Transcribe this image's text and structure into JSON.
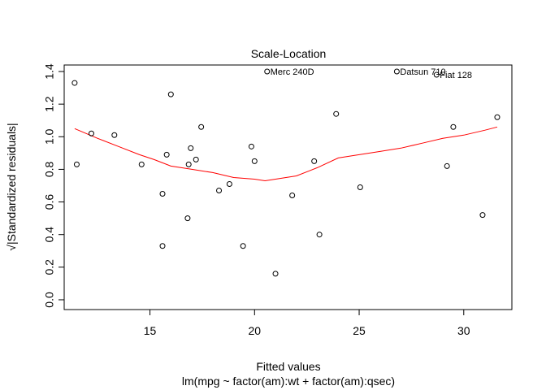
{
  "chart_data": {
    "type": "scatter",
    "title": "Scale-Location",
    "xlabel": "Fitted values",
    "subtitle": "lm(mpg ~ factor(am):wt + factor(am):qsec)",
    "ylabel": "√|Standardized residuals|",
    "xlim": [
      10.9,
      32.3
    ],
    "ylim": [
      -0.06,
      1.44
    ],
    "x_ticks": [
      15,
      20,
      25,
      30
    ],
    "y_ticks": [
      0.0,
      0.2,
      0.4,
      0.6,
      0.8,
      1.0,
      1.2,
      1.4
    ],
    "x_tick_labels": [
      "15",
      "20",
      "25",
      "30"
    ],
    "y_tick_labels": [
      "0.0",
      "0.2",
      "0.4",
      "0.6",
      "0.8",
      "1.0",
      "1.2",
      "1.4"
    ],
    "points": [
      {
        "x": 11.4,
        "y": 1.33
      },
      {
        "x": 11.5,
        "y": 0.83
      },
      {
        "x": 12.2,
        "y": 1.02
      },
      {
        "x": 13.3,
        "y": 1.01
      },
      {
        "x": 14.6,
        "y": 0.83
      },
      {
        "x": 15.6,
        "y": 0.65
      },
      {
        "x": 15.6,
        "y": 0.33
      },
      {
        "x": 15.8,
        "y": 0.89
      },
      {
        "x": 16.0,
        "y": 1.26
      },
      {
        "x": 16.8,
        "y": 0.5
      },
      {
        "x": 16.85,
        "y": 0.83
      },
      {
        "x": 16.95,
        "y": 0.93
      },
      {
        "x": 17.2,
        "y": 0.86
      },
      {
        "x": 17.45,
        "y": 1.06
      },
      {
        "x": 18.3,
        "y": 0.67
      },
      {
        "x": 18.8,
        "y": 0.71
      },
      {
        "x": 19.45,
        "y": 0.33
      },
      {
        "x": 19.85,
        "y": 0.94
      },
      {
        "x": 20.0,
        "y": 0.85
      },
      {
        "x": 21.0,
        "y": 0.16
      },
      {
        "x": 21.8,
        "y": 0.64
      },
      {
        "x": 22.85,
        "y": 0.85
      },
      {
        "x": 23.1,
        "y": 0.4
      },
      {
        "x": 23.9,
        "y": 1.14
      },
      {
        "x": 25.05,
        "y": 0.69
      },
      {
        "x": 29.2,
        "y": 0.82
      },
      {
        "x": 29.5,
        "y": 1.06
      },
      {
        "x": 30.9,
        "y": 0.52
      },
      {
        "x": 31.6,
        "y": 1.12
      },
      {
        "x": 20.6,
        "y": 1.4,
        "label": "Merc 240D"
      },
      {
        "x": 26.8,
        "y": 1.4,
        "label": "Datsun 710"
      },
      {
        "x": 28.7,
        "y": 1.38,
        "label": "Fiat 128"
      }
    ],
    "smooth_line": {
      "color": "#ff0000",
      "x": [
        11.4,
        12.5,
        13.5,
        14.5,
        15.2,
        16.0,
        17.0,
        18.0,
        19.0,
        20.0,
        20.5,
        21.0,
        22.0,
        23.0,
        24.0,
        25.0,
        26.0,
        27.0,
        28.0,
        29.0,
        30.0,
        31.0,
        31.6
      ],
      "y": [
        1.05,
        0.99,
        0.94,
        0.89,
        0.86,
        0.82,
        0.8,
        0.78,
        0.75,
        0.74,
        0.73,
        0.74,
        0.76,
        0.81,
        0.87,
        0.89,
        0.91,
        0.93,
        0.96,
        0.99,
        1.01,
        1.04,
        1.06
      ]
    },
    "grid": false,
    "legend": "none"
  }
}
